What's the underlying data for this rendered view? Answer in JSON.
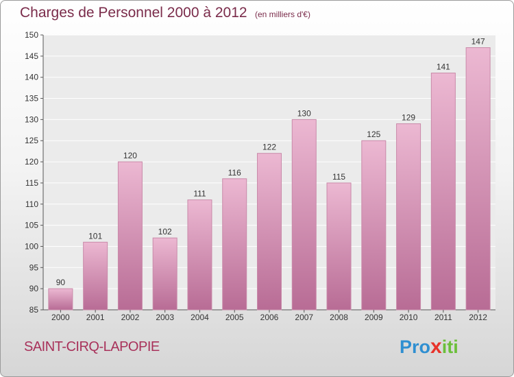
{
  "title": "Charges de Personnel 2000 à 2012",
  "unit_label": "(en milliers d'€)",
  "commune": "SAINT-CIRQ-LAPOPIE",
  "logo": {
    "pre": "Pro",
    "x": "x",
    "post": "iti"
  },
  "colors": {
    "bar": "#d990b5",
    "bar_highlight": "#ecb8d2",
    "title": "#7a2b4a",
    "commune": "#a8315a"
  },
  "chart_data": {
    "type": "bar",
    "title": "Charges de Personnel 2000 à 2012",
    "subtitle": "(en milliers d'€)",
    "categories": [
      "2000",
      "2001",
      "2002",
      "2003",
      "2004",
      "2005",
      "2006",
      "2007",
      "2008",
      "2009",
      "2010",
      "2011",
      "2012"
    ],
    "values": [
      90,
      101,
      120,
      102,
      111,
      116,
      122,
      130,
      115,
      125,
      129,
      141,
      147
    ],
    "ylim": [
      85,
      150
    ],
    "yticks": [
      85,
      90,
      95,
      100,
      105,
      110,
      115,
      120,
      125,
      130,
      135,
      140,
      145,
      150
    ],
    "grid": true,
    "legend": "none"
  }
}
